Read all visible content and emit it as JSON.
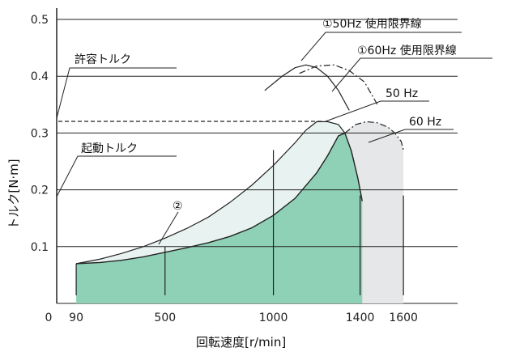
{
  "chart_data": {
    "type": "area",
    "xlabel": "回転速度[r/min]",
    "ylabel": "トルク[N·m]",
    "xlim": [
      0,
      1850
    ],
    "ylim": [
      0,
      0.52
    ],
    "x_ticks": [
      "0",
      "90",
      "500",
      "1000",
      "1400",
      "1600"
    ],
    "x_tick_values": [
      0,
      90,
      500,
      1000,
      1400,
      1600
    ],
    "y_ticks": [
      "0.1",
      "0.2",
      "0.3",
      "0.4",
      "0.5"
    ],
    "y_tick_values": [
      0.1,
      0.2,
      0.3,
      0.4,
      0.5
    ],
    "grid": "horizontal",
    "reference_lines": {
      "permissible_torque": {
        "label": "許容トルク",
        "y": 0.325
      },
      "starting_torque": {
        "label": "起動トルク"
      }
    },
    "series": [
      {
        "name": "50 Hz",
        "color": "#8fd1b6",
        "x": [
          90,
          200,
          300,
          400,
          500,
          600,
          700,
          800,
          900,
          1000,
          1100,
          1200,
          1250,
          1300,
          1330,
          1360,
          1390,
          1410
        ],
        "y": [
          0.07,
          0.072,
          0.076,
          0.082,
          0.09,
          0.098,
          0.107,
          0.118,
          0.133,
          0.155,
          0.185,
          0.23,
          0.26,
          0.295,
          0.3,
          0.268,
          0.22,
          0.18
        ]
      },
      {
        "name": "60 Hz",
        "color": "#e6e7e8",
        "x": [
          1330,
          1380,
          1430,
          1480,
          1530,
          1560,
          1590,
          1600
        ],
        "y": [
          0.3,
          0.315,
          0.32,
          0.318,
          0.31,
          0.3,
          0.285,
          0.27
        ]
      },
      {
        "name": "使用限界",
        "color": "#e8f3f1",
        "x": [
          90,
          200,
          300,
          400,
          500,
          600,
          700,
          800,
          900,
          1000,
          1100,
          1150,
          1200,
          1250,
          1300,
          1330
        ],
        "y": [
          0.07,
          0.078,
          0.088,
          0.1,
          0.115,
          0.132,
          0.152,
          0.178,
          0.208,
          0.243,
          0.283,
          0.305,
          0.32,
          0.32,
          0.315,
          0.3
        ]
      }
    ],
    "limit_curves": [
      {
        "name": "①50Hz 使用限界線",
        "x": [
          960,
          1040,
          1100,
          1150,
          1200,
          1250,
          1300,
          1350
        ],
        "y": [
          0.375,
          0.4,
          0.415,
          0.42,
          0.415,
          0.4,
          0.375,
          0.34
        ]
      },
      {
        "name": "①60Hz 使用限界線",
        "x": [
          1120,
          1200,
          1280,
          1350,
          1420,
          1480
        ],
        "y": [
          0.405,
          0.418,
          0.42,
          0.41,
          0.39,
          0.35
        ]
      }
    ],
    "annotations": [
      {
        "text": "①50Hz 使用限界線"
      },
      {
        "text": "①60Hz 使用限界線"
      },
      {
        "text": "50 Hz"
      },
      {
        "text": "60 Hz"
      },
      {
        "text": "②"
      }
    ]
  }
}
